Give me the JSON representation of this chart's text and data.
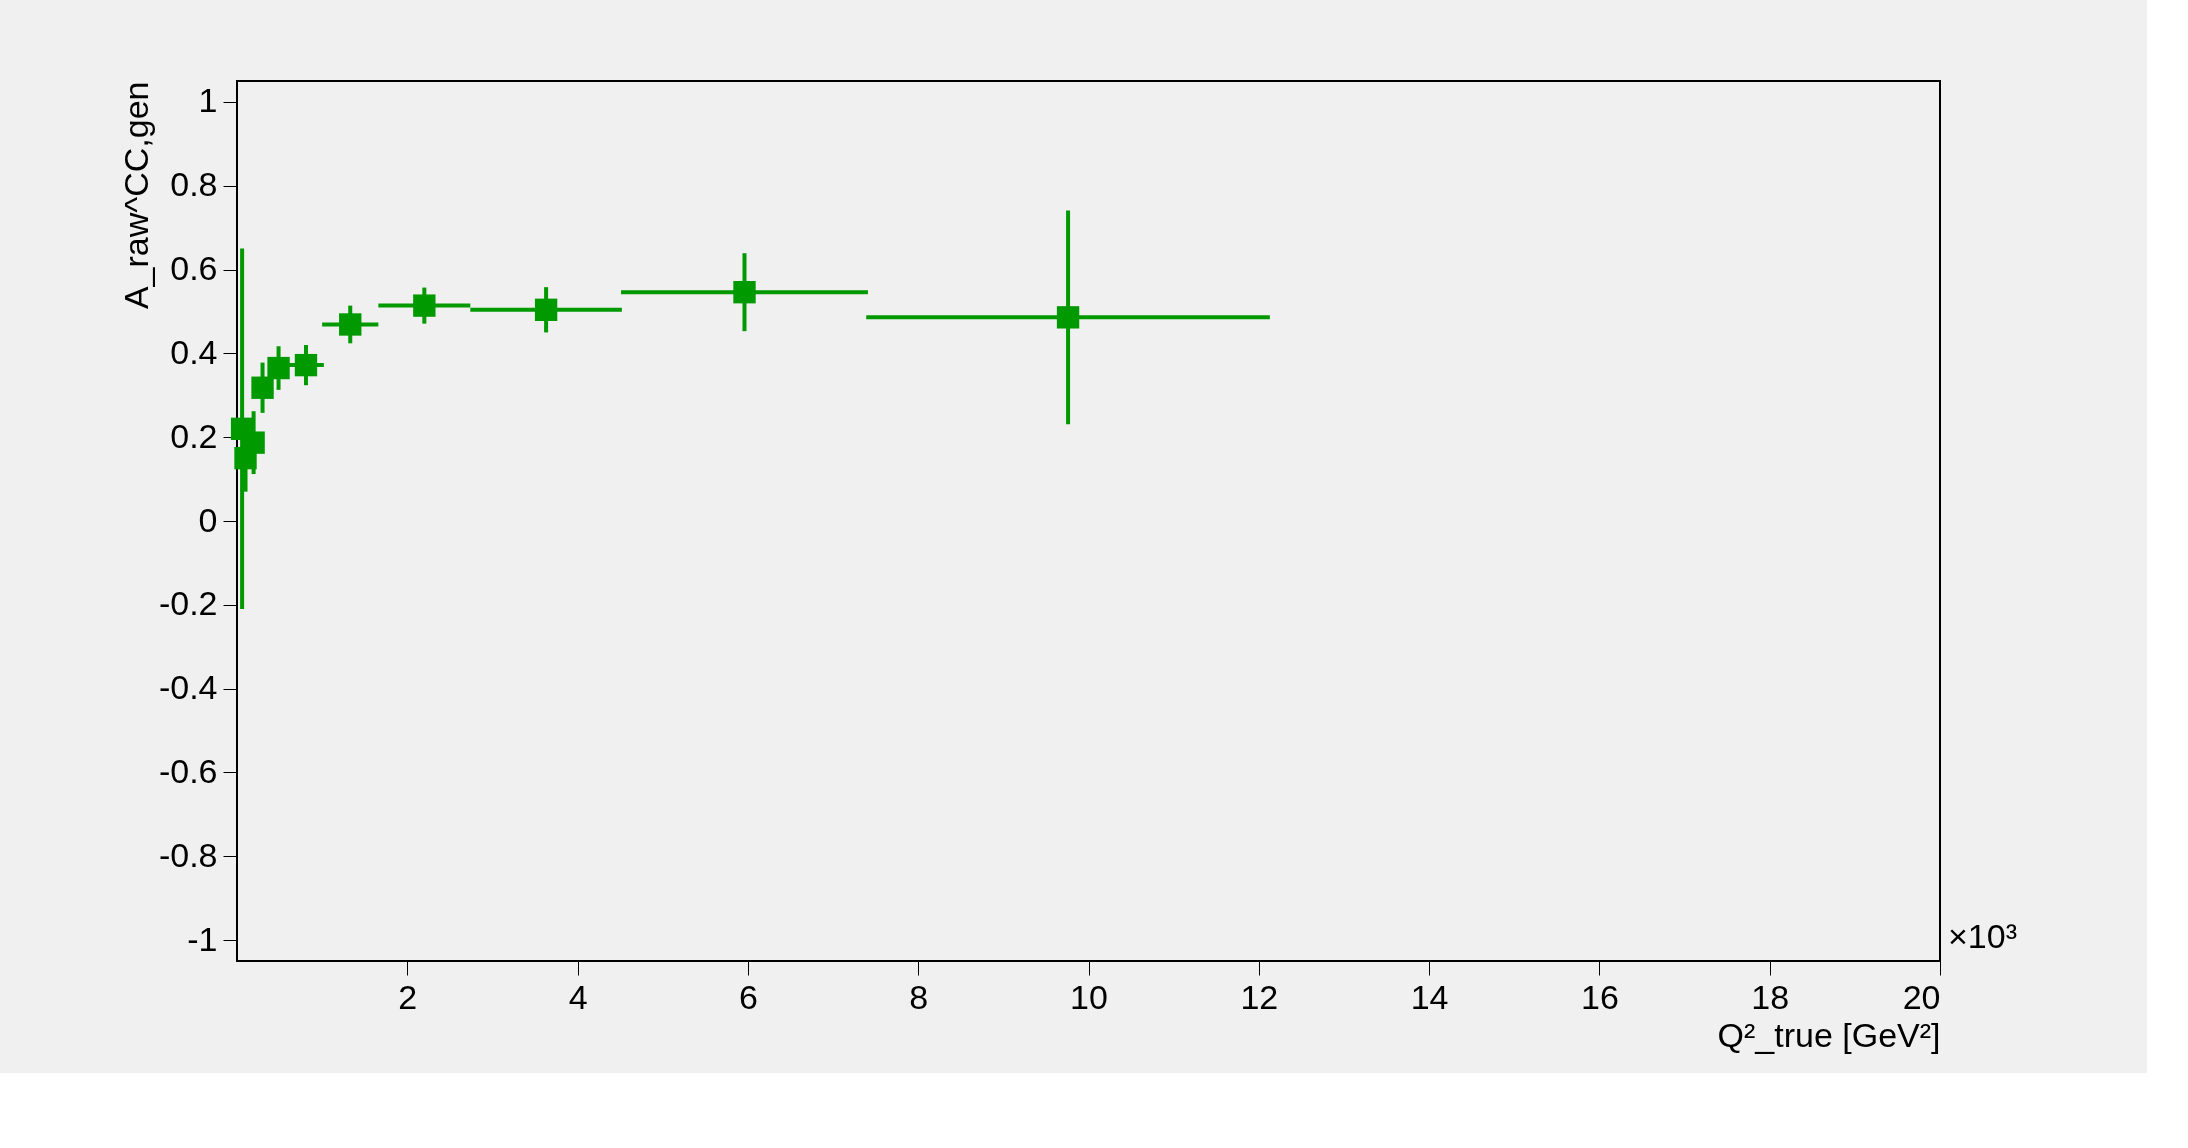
{
  "chart_data": {
    "type": "scatter",
    "xlabel": "Q²_true [GeV²]",
    "ylabel": "A_raw^CC,gen",
    "annotations": [
      "×10³"
    ],
    "x": [
      0.06,
      0.1,
      0.195,
      0.3,
      0.488,
      0.81,
      1.33,
      2.2,
      3.63,
      5.96,
      9.76
    ],
    "values": [
      0.22,
      0.15,
      0.187,
      0.318,
      0.365,
      0.372,
      0.469,
      0.514,
      0.504,
      0.546,
      0.486
    ],
    "color": "#009900",
    "errors": [
      0.43,
      0.08,
      0.075,
      0.06,
      0.052,
      0.048,
      0.045,
      0.043,
      0.054,
      0.093,
      0.255
    ],
    "xerrors": [
      0.04,
      0.04,
      0.11,
      0.1,
      0.107,
      0.21,
      0.33,
      0.54,
      0.89,
      1.45,
      2.37
    ],
    "xlim": [
      0,
      20
    ],
    "xticks": [
      2,
      4,
      6,
      8,
      10,
      12,
      14,
      16,
      18,
      20
    ],
    "ylim": [
      -1.05,
      1.05
    ],
    "yticks": [
      -1,
      -0.8,
      -0.6,
      -0.4,
      -0.2,
      0,
      0.2,
      0.4,
      0.6,
      0.8,
      1
    ],
    "marker": "square",
    "grid": false
  }
}
